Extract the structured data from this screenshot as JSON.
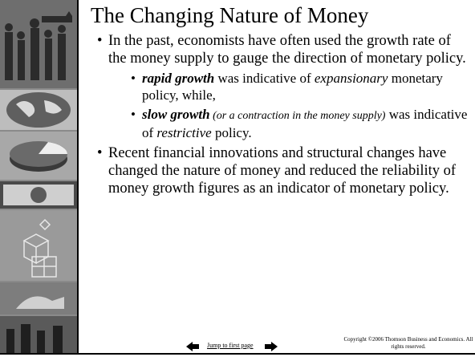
{
  "slide": {
    "title": "The Changing Nature of Money",
    "bullets": [
      {
        "text": "In the past, economists have often used the growth rate of the money supply to gauge the direction of monetary policy.",
        "sub_bullets": [
          {
            "runs": [
              "rapid growth",
              " was indicative of ",
              "expansionary",
              " monetary policy, while,"
            ]
          },
          {
            "runs": [
              "slow growth",
              " (or a contraction in the money supply)",
              " was indicative of ",
              "restrictive",
              " policy."
            ]
          }
        ]
      },
      {
        "text": "Recent financial innovations and structural changes have changed the nature of money and reduced the reliability of money growth figures as an indicator of monetary policy."
      }
    ],
    "footer": {
      "link": "Jump to first page",
      "copyright": "Copyright ©2006 Thomson Business and Economics. All rights reserved."
    }
  }
}
